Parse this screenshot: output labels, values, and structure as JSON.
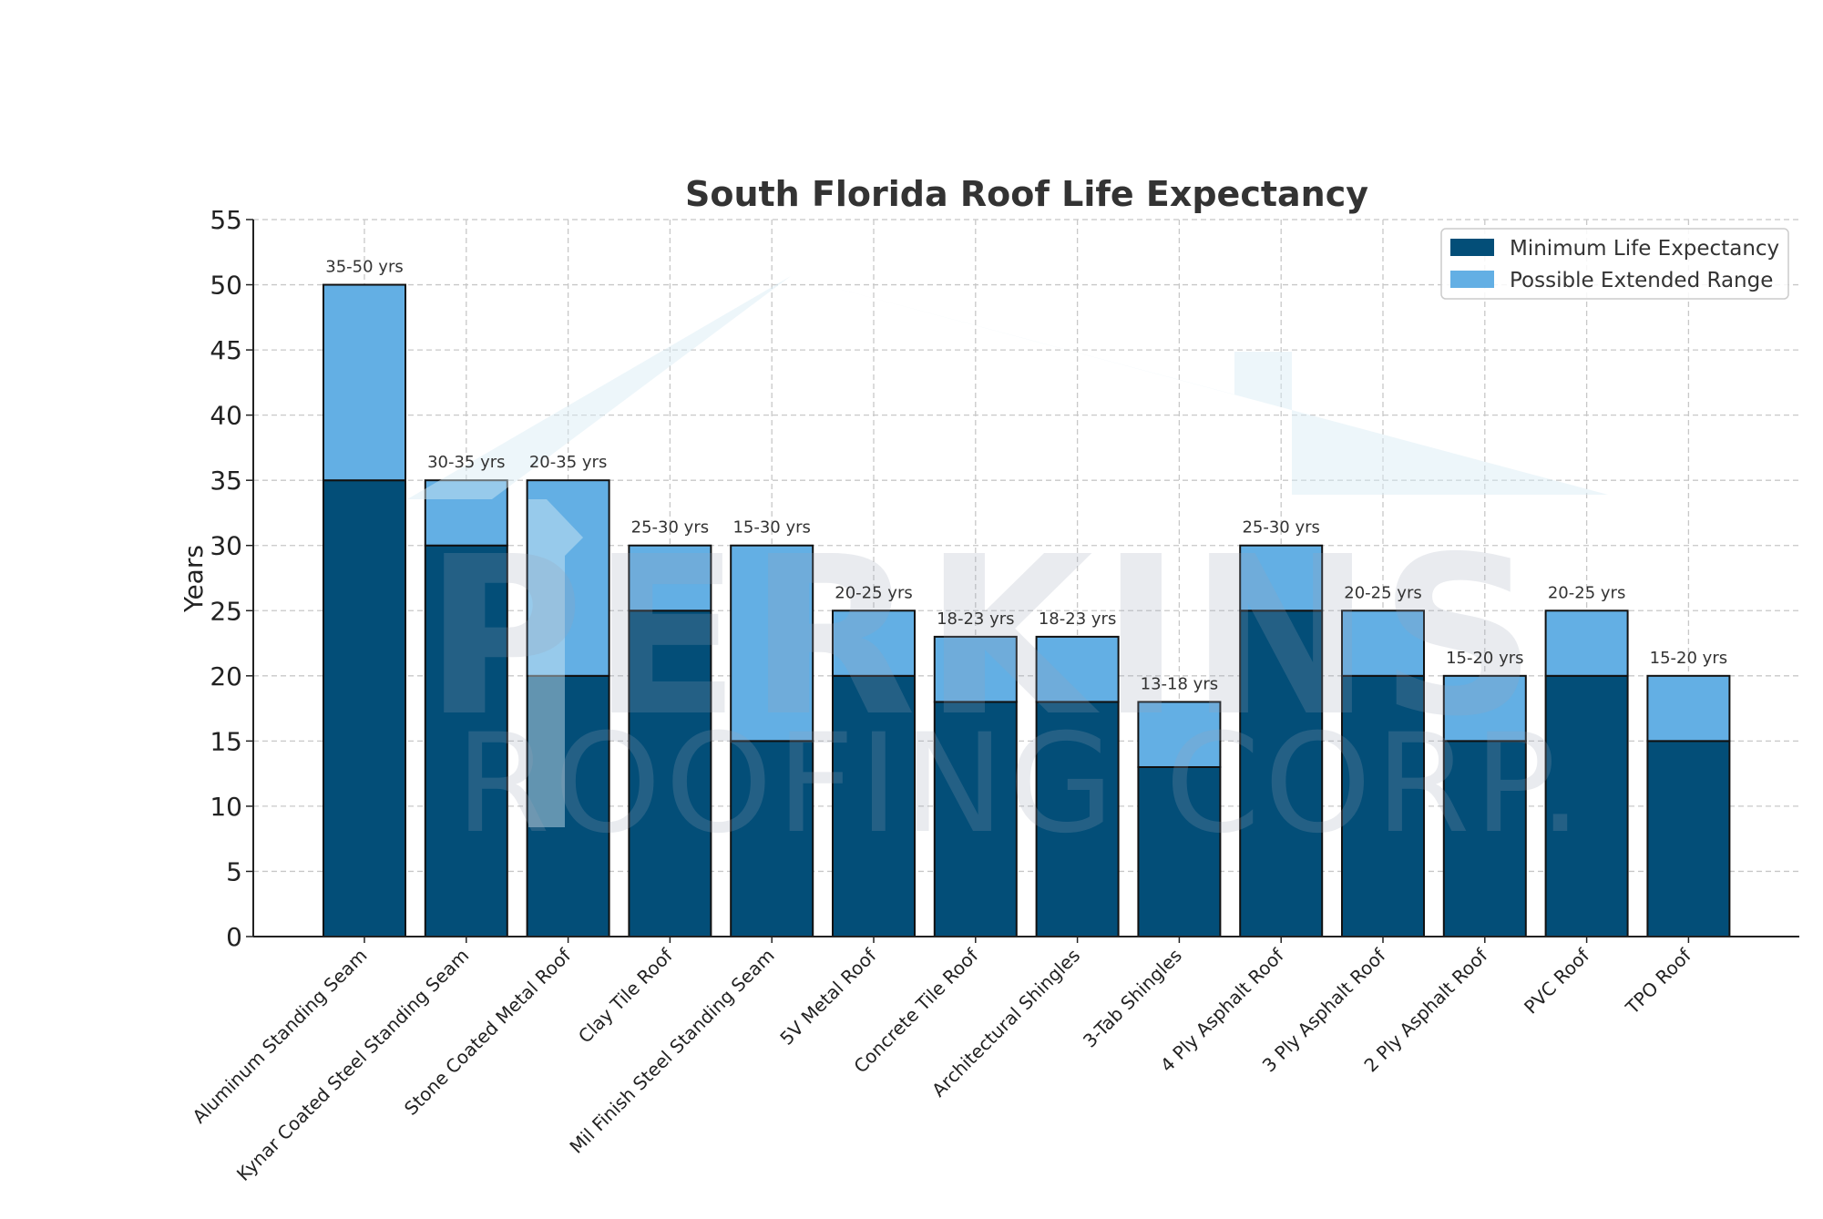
{
  "chart_data": {
    "type": "bar",
    "stacked": true,
    "title": "South Florida Roof Life Expectancy",
    "xlabel": "",
    "ylabel": "Years",
    "ylim": [
      0,
      55
    ],
    "yticks": [
      0,
      5,
      10,
      15,
      20,
      25,
      30,
      35,
      40,
      45,
      50,
      55
    ],
    "grid": true,
    "legend_position": "top-right",
    "categories": [
      "Aluminum Standing Seam",
      "Kynar Coated Steel Standing Seam",
      "Stone Coated Metal Roof",
      "Clay Tile Roof",
      "Mil Finish Steel Standing Seam",
      "5V Metal Roof",
      "Concrete Tile Roof",
      "Architectural Shingles",
      "3-Tab Shingles",
      "4 Ply Asphalt Roof",
      "3 Ply Asphalt Roof",
      "2 Ply Asphalt Roof",
      "PVC Roof",
      "TPO Roof"
    ],
    "series": [
      {
        "name": "Minimum Life Expectancy",
        "color": "#034e78",
        "values": [
          35,
          30,
          20,
          25,
          15,
          20,
          18,
          18,
          13,
          25,
          20,
          15,
          20,
          15
        ]
      },
      {
        "name": "Possible Extended Range",
        "color": "#63afe4",
        "values": [
          15,
          5,
          15,
          5,
          15,
          5,
          5,
          5,
          5,
          5,
          5,
          5,
          5,
          5
        ]
      }
    ],
    "data_labels": [
      "35-50 yrs",
      "30-35 yrs",
      "20-35 yrs",
      "25-30 yrs",
      "15-30 yrs",
      "20-25 yrs",
      "18-23 yrs",
      "18-23 yrs",
      "13-18 yrs",
      "25-30 yrs",
      "20-25 yrs",
      "15-20 yrs",
      "20-25 yrs",
      "15-20 yrs"
    ]
  },
  "watermark": {
    "line1": "PERKINS",
    "line2": "ROOFING CORP."
  }
}
